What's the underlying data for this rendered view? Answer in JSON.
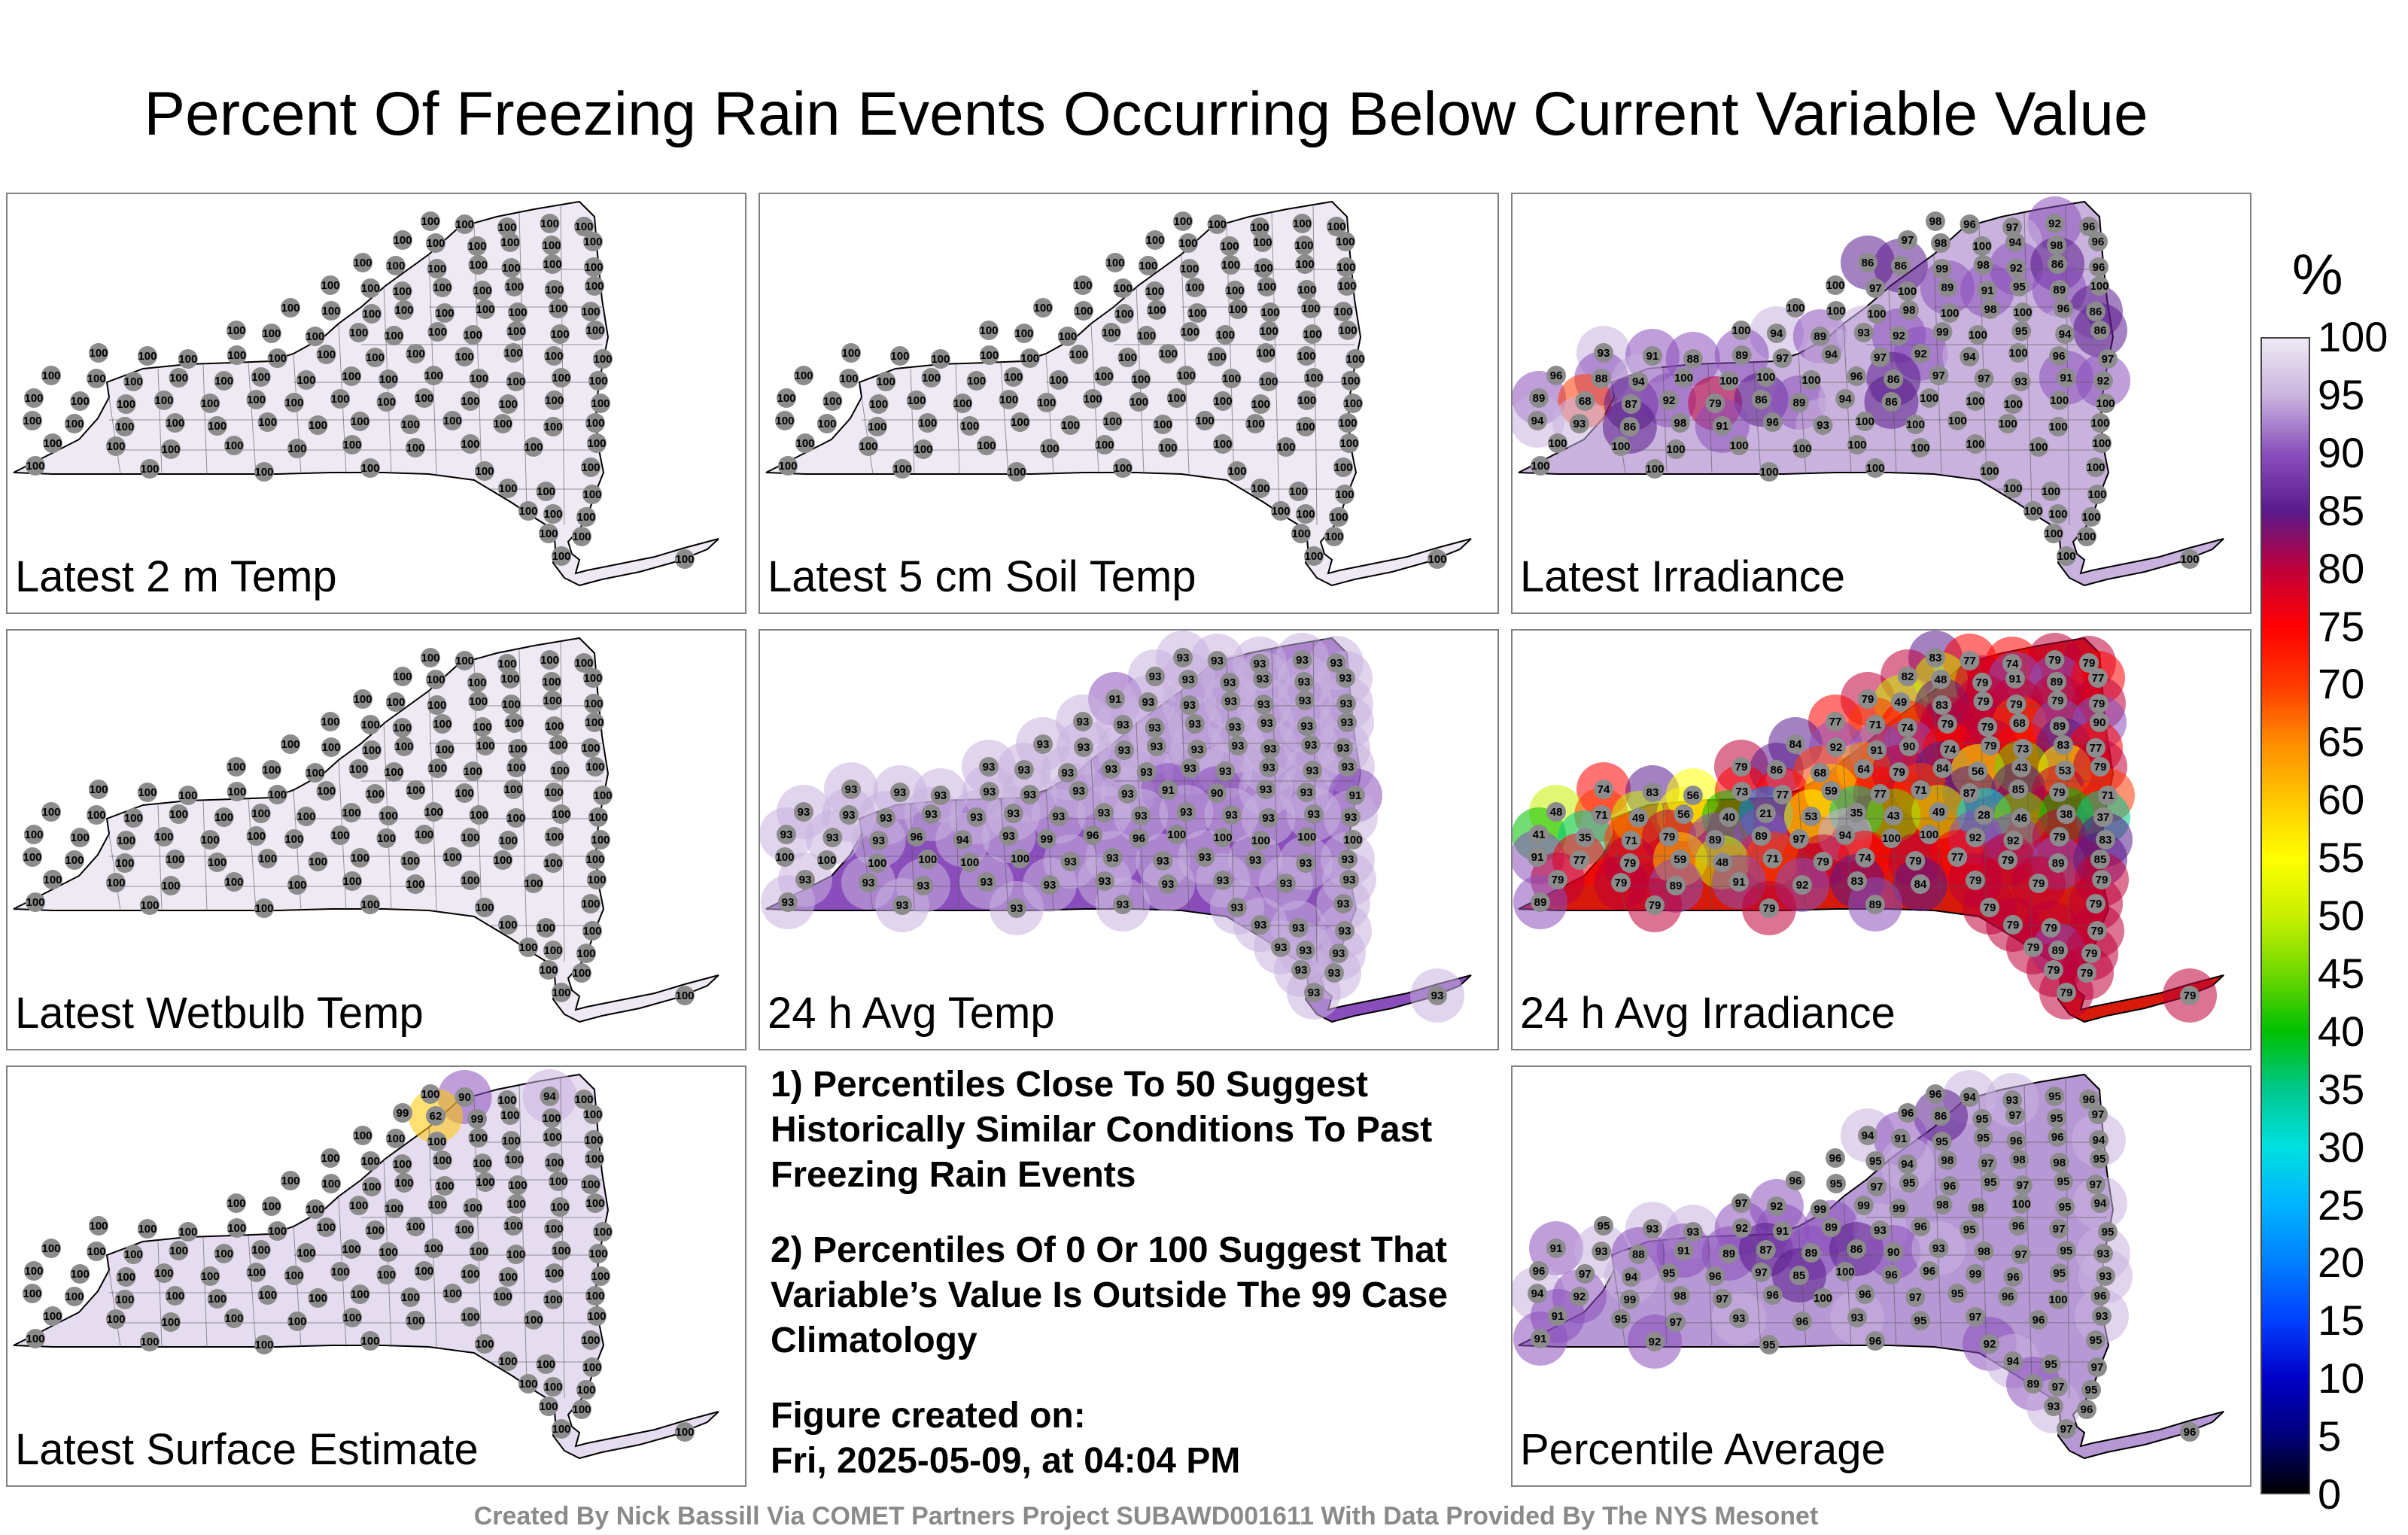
{
  "figure": {
    "title": "Percent Of Freezing Rain Events Occurring Below Current Variable Value",
    "credit": "Created By Nick Bassill Via COMET Partners Project SUBAWD001611 With Data Provided By The NYS Mesonet"
  },
  "panels": [
    {
      "label": "Latest 2 m Temp",
      "fill": "#efe9f4",
      "values": [
        100,
        100,
        100,
        100,
        100,
        100,
        100,
        100,
        100,
        100,
        100,
        100,
        100,
        100,
        100,
        100,
        100,
        100,
        100,
        100,
        100,
        100,
        100,
        100,
        100,
        100,
        100,
        100,
        100,
        100,
        100,
        100,
        100,
        100,
        100,
        100,
        100,
        100,
        100,
        100,
        100,
        100,
        100,
        100,
        100,
        100,
        100,
        100,
        100,
        100,
        100,
        100,
        100,
        100,
        100,
        100,
        100,
        100,
        100,
        100,
        100,
        100,
        100,
        100,
        100,
        100,
        100,
        100,
        100,
        100,
        100,
        100,
        100,
        100,
        100,
        100,
        100,
        100,
        100,
        100,
        100,
        100,
        100,
        100,
        100,
        100,
        100,
        100,
        100,
        100,
        100,
        100,
        100,
        100,
        100,
        100,
        100,
        100,
        100,
        100,
        100,
        100,
        100,
        100,
        100,
        100,
        100,
        100,
        100,
        100,
        100,
        100,
        100,
        100,
        100,
        100,
        100,
        100,
        100,
        100,
        100,
        100,
        100,
        100
      ]
    },
    {
      "label": "Latest 5 cm Soil Temp",
      "fill": "#efe9f4",
      "values": [
        100,
        100,
        100,
        100,
        100,
        100,
        100,
        100,
        100,
        100,
        100,
        100,
        100,
        100,
        100,
        100,
        100,
        100,
        100,
        100,
        100,
        100,
        100,
        100,
        100,
        100,
        100,
        100,
        100,
        100,
        100,
        100,
        100,
        100,
        100,
        100,
        100,
        100,
        100,
        100,
        100,
        100,
        100,
        100,
        100,
        100,
        100,
        100,
        100,
        100,
        100,
        100,
        100,
        100,
        100,
        100,
        100,
        100,
        100,
        100,
        100,
        100,
        100,
        100,
        100,
        100,
        100,
        100,
        100,
        100,
        100,
        100,
        100,
        100,
        100,
        100,
        100,
        100,
        100,
        100,
        100,
        100,
        100,
        100,
        100,
        100,
        100,
        100,
        100,
        100,
        100,
        100,
        100,
        100,
        100,
        100,
        100,
        100,
        100,
        100,
        100,
        100,
        100,
        100,
        100,
        100,
        100,
        100,
        100,
        100,
        100,
        100,
        100,
        100,
        100,
        100,
        100,
        100,
        100,
        100,
        100,
        100,
        100,
        100
      ]
    },
    {
      "label": "Latest Irradiance",
      "fill": "#c9b3de",
      "values": [
        98,
        96,
        97,
        92,
        96,
        97,
        98,
        100,
        94,
        98,
        96,
        86,
        86,
        99,
        98,
        92,
        86,
        96,
        100,
        97,
        100,
        89,
        91,
        95,
        89,
        100,
        100,
        100,
        100,
        98,
        100,
        98,
        100,
        96,
        86,
        100,
        94,
        89,
        93,
        92,
        99,
        100,
        95,
        94,
        86,
        93,
        91,
        88,
        89,
        97,
        94,
        97,
        92,
        94,
        100,
        96,
        97,
        96,
        88,
        94,
        100,
        100,
        100,
        100,
        96,
        86,
        97,
        97,
        93,
        91,
        92,
        89,
        68,
        87,
        92,
        79,
        86,
        89,
        94,
        86,
        100,
        100,
        100,
        100,
        100,
        94,
        93,
        86,
        98,
        91,
        96,
        93,
        100,
        100,
        100,
        100,
        100,
        100,
        100,
        100,
        100,
        100,
        100,
        100,
        100,
        100,
        100,
        100,
        100,
        100,
        100,
        100,
        100,
        100,
        100,
        100,
        100,
        100,
        100,
        100,
        100,
        100,
        100,
        100
      ]
    },
    {
      "label": "Latest Wetbulb Temp",
      "fill": "#efe9f4",
      "values": [
        100,
        100,
        100,
        100,
        100,
        100,
        100,
        100,
        100,
        100,
        100,
        100,
        100,
        100,
        100,
        100,
        100,
        100,
        100,
        100,
        100,
        100,
        100,
        100,
        100,
        100,
        100,
        100,
        100,
        100,
        100,
        100,
        100,
        100,
        100,
        100,
        100,
        100,
        100,
        100,
        100,
        100,
        100,
        100,
        100,
        100,
        100,
        100,
        100,
        100,
        100,
        100,
        100,
        100,
        100,
        100,
        100,
        100,
        100,
        100,
        100,
        100,
        100,
        100,
        100,
        100,
        100,
        100,
        100,
        100,
        100,
        100,
        100,
        100,
        100,
        100,
        100,
        100,
        100,
        100,
        100,
        100,
        100,
        100,
        100,
        100,
        100,
        100,
        100,
        100,
        100,
        100,
        100,
        100,
        100,
        100,
        100,
        100,
        100,
        100,
        100,
        100,
        100,
        100,
        100,
        100,
        100,
        100,
        100,
        100,
        100,
        100,
        100,
        100,
        100,
        100,
        100,
        100,
        100,
        100,
        100,
        100,
        100,
        100
      ]
    },
    {
      "label": "24 h Avg Temp",
      "fill": "#8a4ebc",
      "values": [
        93,
        93,
        93,
        93,
        93,
        93,
        93,
        93,
        93,
        93,
        93,
        91,
        93,
        93,
        93,
        93,
        93,
        93,
        93,
        93,
        93,
        93,
        93,
        93,
        93,
        93,
        93,
        93,
        93,
        93,
        93,
        93,
        93,
        93,
        93,
        93,
        93,
        93,
        93,
        93,
        93,
        93,
        93,
        93,
        93,
        93,
        93,
        93,
        93,
        93,
        93,
        93,
        91,
        90,
        93,
        93,
        91,
        93,
        93,
        93,
        93,
        93,
        93,
        93,
        93,
        93,
        93,
        93,
        93,
        93,
        93,
        93,
        93,
        93,
        96,
        94,
        93,
        99,
        96,
        96,
        100,
        100,
        100,
        100,
        100,
        100,
        100,
        100,
        100,
        100,
        100,
        93,
        93,
        93,
        93,
        93,
        93,
        93,
        93,
        93,
        93,
        93,
        93,
        93,
        93,
        93,
        93,
        93,
        93,
        93,
        93,
        93,
        93,
        93,
        93,
        93,
        93,
        93,
        93,
        93,
        93,
        93,
        93,
        93
      ]
    },
    {
      "label": "24 h Avg Irradiance",
      "fill": "#d81a0a",
      "values": [
        83,
        77,
        74,
        79,
        79,
        82,
        48,
        79,
        91,
        89,
        77,
        79,
        49,
        83,
        79,
        79,
        79,
        79,
        77,
        71,
        74,
        79,
        79,
        68,
        89,
        90,
        84,
        92,
        91,
        90,
        74,
        79,
        73,
        83,
        77,
        79,
        86,
        68,
        64,
        79,
        84,
        56,
        43,
        53,
        79,
        74,
        83,
        56,
        73,
        77,
        59,
        77,
        71,
        87,
        85,
        79,
        71,
        48,
        71,
        49,
        56,
        40,
        21,
        53,
        35,
        43,
        49,
        28,
        46,
        38,
        37,
        41,
        35,
        71,
        79,
        89,
        89,
        97,
        94,
        100,
        100,
        92,
        92,
        79,
        83,
        91,
        77,
        79,
        59,
        48,
        71,
        79,
        74,
        79,
        77,
        79,
        89,
        85,
        79,
        79,
        89,
        91,
        92,
        83,
        84,
        79,
        79,
        79,
        89,
        79,
        79,
        89,
        79,
        79,
        79,
        79,
        79,
        79,
        89,
        79,
        79,
        79,
        79,
        79
      ]
    },
    {
      "label": "Latest Surface Estimate",
      "fill": "#e6dcef",
      "values": [
        100,
        90,
        100,
        94,
        100,
        99,
        62,
        99,
        100,
        100,
        100,
        100,
        100,
        100,
        100,
        100,
        100,
        100,
        100,
        100,
        100,
        100,
        100,
        100,
        100,
        100,
        100,
        100,
        100,
        100,
        100,
        100,
        100,
        100,
        100,
        100,
        100,
        100,
        100,
        100,
        100,
        100,
        100,
        100,
        100,
        100,
        100,
        100,
        100,
        100,
        100,
        100,
        100,
        100,
        100,
        100,
        100,
        100,
        100,
        100,
        100,
        100,
        100,
        100,
        100,
        100,
        100,
        100,
        100,
        100,
        100,
        100,
        100,
        100,
        100,
        100,
        100,
        100,
        100,
        100,
        100,
        100,
        100,
        100,
        100,
        100,
        100,
        100,
        100,
        100,
        100,
        100,
        100,
        100,
        100,
        100,
        100,
        100,
        100,
        100,
        100,
        100,
        100,
        100,
        100,
        100,
        100,
        100,
        100,
        100,
        100,
        100,
        100,
        100,
        100,
        100,
        100,
        100,
        100,
        100,
        100,
        100,
        100,
        100
      ]
    },
    {
      "label": "Percentile Average",
      "fill": "#b698d4",
      "values": [
        96,
        94,
        93,
        95,
        96,
        96,
        86,
        95,
        97,
        95,
        97,
        94,
        91,
        95,
        95,
        96,
        96,
        94,
        96,
        95,
        94,
        98,
        97,
        98,
        98,
        95,
        96,
        95,
        97,
        95,
        96,
        95,
        97,
        95,
        97,
        97,
        92,
        99,
        99,
        99,
        98,
        98,
        100,
        95,
        94,
        95,
        93,
        93,
        92,
        91,
        89,
        93,
        96,
        95,
        96,
        97,
        95,
        91,
        93,
        88,
        91,
        89,
        87,
        89,
        86,
        90,
        93,
        98,
        97,
        95,
        93,
        96,
        97,
        94,
        95,
        96,
        97,
        85,
        100,
        96,
        96,
        99,
        96,
        95,
        93,
        94,
        92,
        99,
        98,
        97,
        96,
        100,
        96,
        97,
        95,
        96,
        100,
        96,
        91,
        95,
        97,
        93,
        96,
        93,
        95,
        97,
        96,
        93,
        91,
        92,
        95,
        96,
        92,
        95,
        94,
        95,
        97,
        89,
        97,
        95,
        93,
        96,
        97,
        96
      ]
    }
  ],
  "notes": {
    "note1": "1) Percentiles Close To 50 Suggest Historically Similar Conditions To Past Freezing Rain Events",
    "note2": "2) Percentiles Of 0 Or 100 Suggest That Variable’s Value Is Outside The 99 Case Climatology",
    "created_label": "Figure created on:",
    "created_value": "Fri, 2025-05-09, at 04:04 PM"
  },
  "colorbar": {
    "unit": "%",
    "ticks": [
      "100",
      "95",
      "90",
      "85",
      "80",
      "75",
      "70",
      "65",
      "60",
      "55",
      "50",
      "45",
      "40",
      "35",
      "30",
      "25",
      "20",
      "15",
      "10",
      "5",
      "0"
    ],
    "colors": [
      "#efe9f4",
      "#c9b3de",
      "#8a4ebc",
      "#5a1a8c",
      "#c0003a",
      "#ff0000",
      "#ff3a00",
      "#ff8c00",
      "#ffc800",
      "#ffff00",
      "#c8f000",
      "#70d800",
      "#00c000",
      "#00c88c",
      "#00e0e0",
      "#00b4ff",
      "#0080ff",
      "#0040ff",
      "#0000c8",
      "#00007a",
      "#000000"
    ]
  }
}
